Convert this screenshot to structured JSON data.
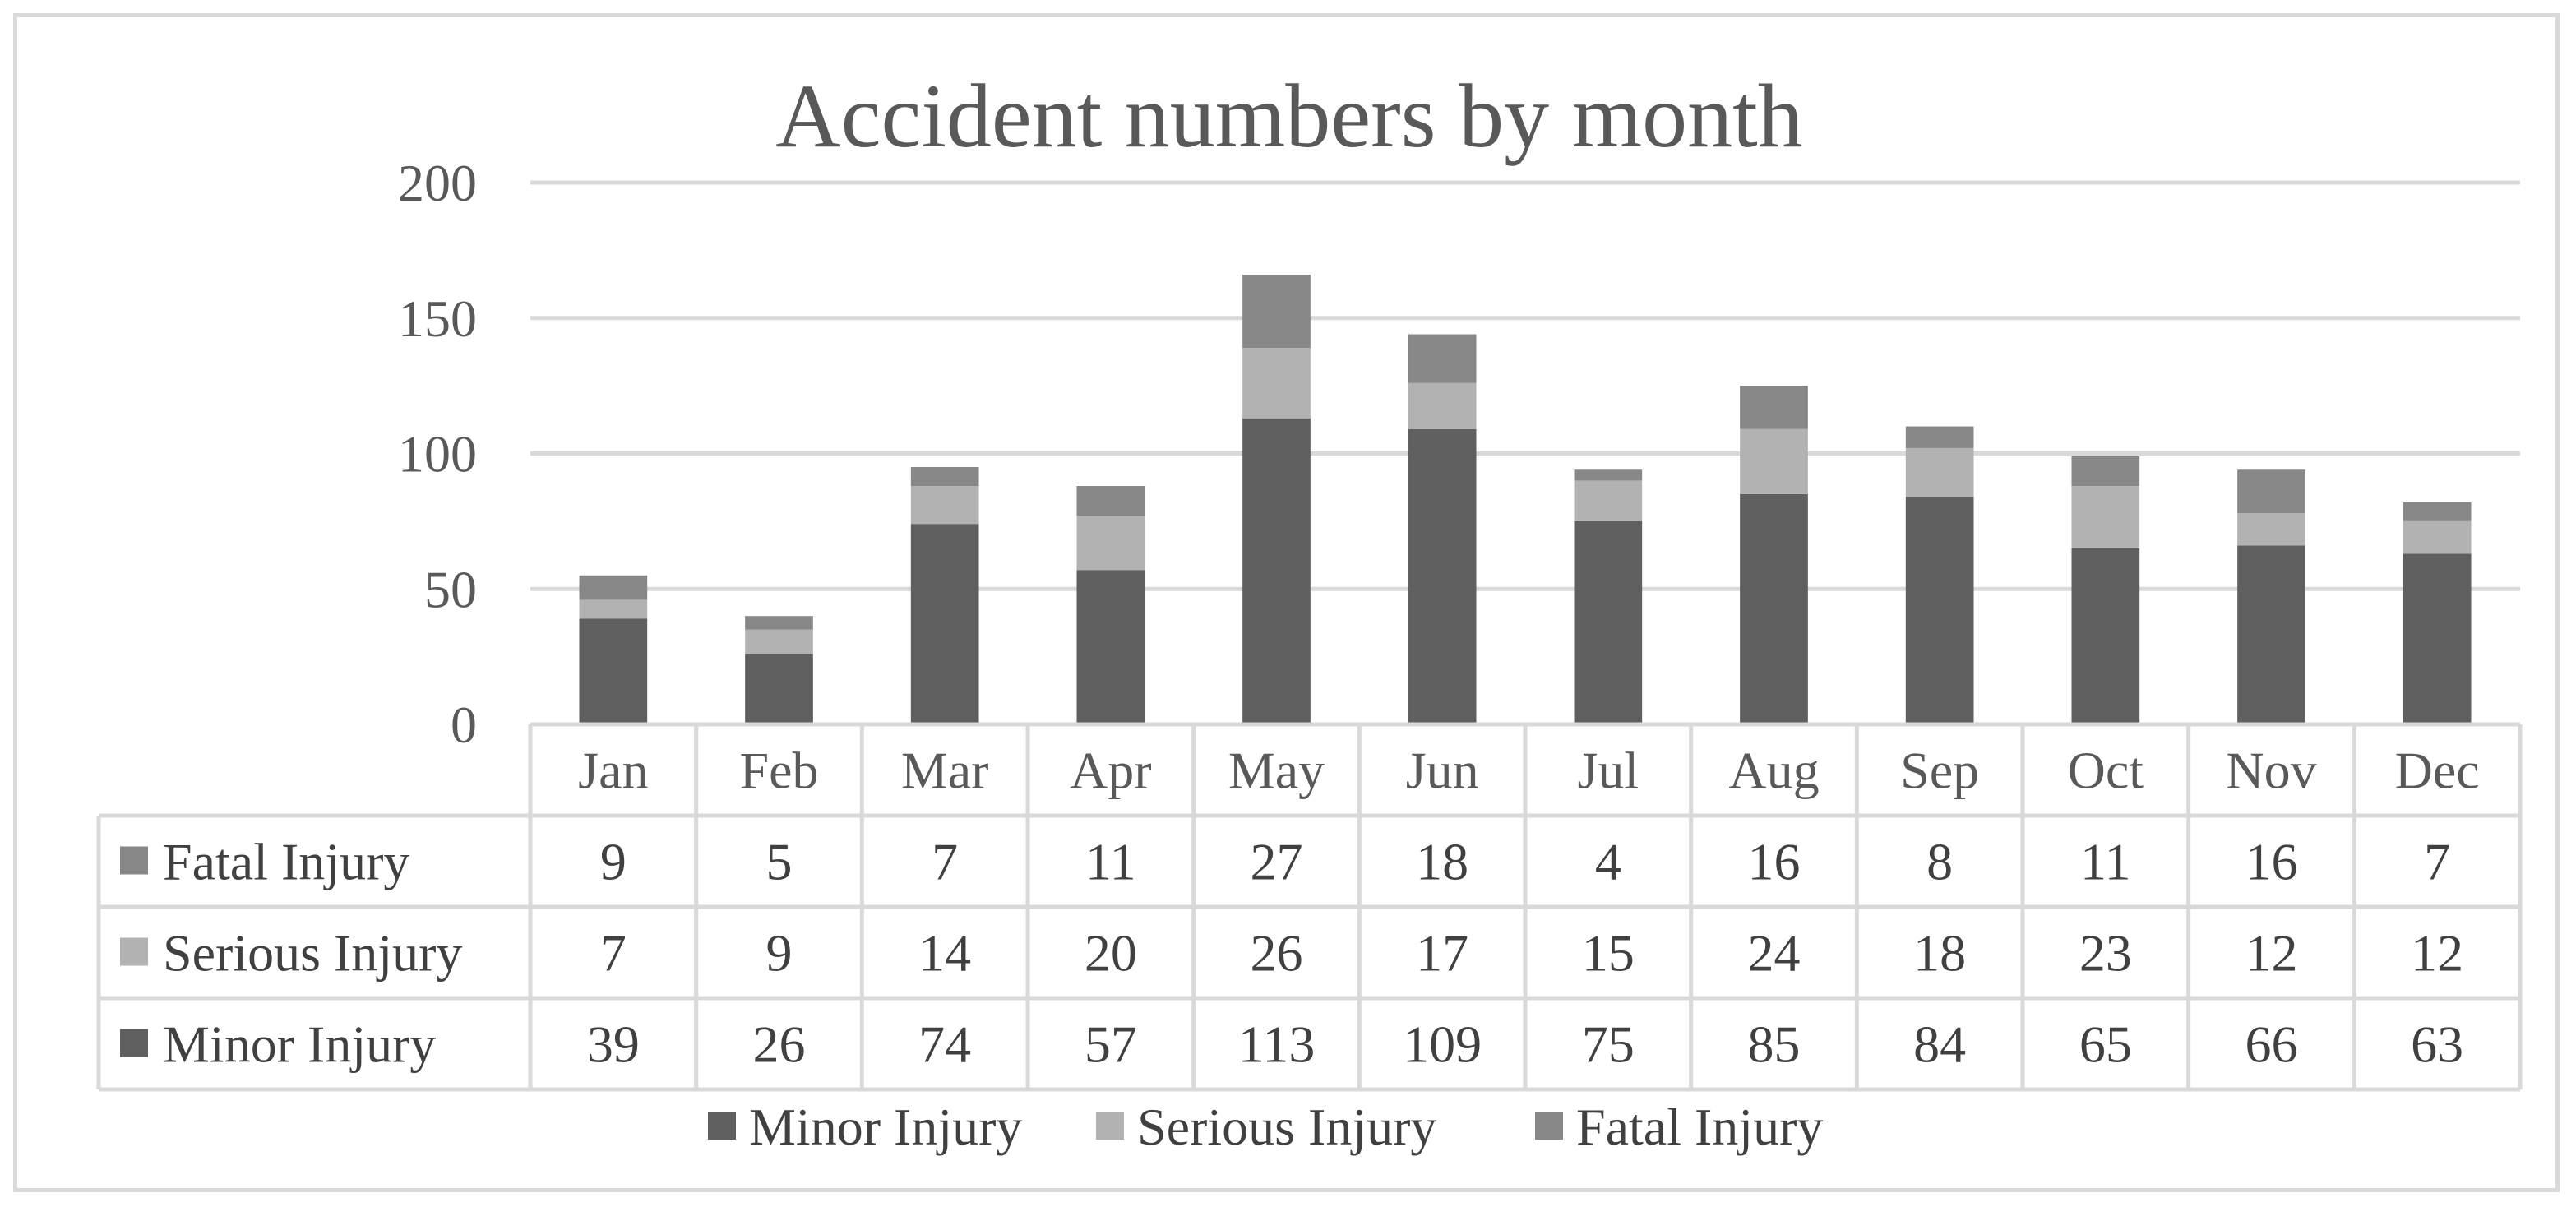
{
  "chart_data": {
    "type": "bar",
    "stacked": true,
    "title": "Accident numbers by month",
    "categories": [
      "Jan",
      "Feb",
      "Mar",
      "Apr",
      "May",
      "Jun",
      "Jul",
      "Aug",
      "Sep",
      "Oct",
      "Nov",
      "Dec"
    ],
    "series": [
      {
        "name": "Minor Injury",
        "color": "#5f5f5f",
        "values": [
          39,
          26,
          74,
          57,
          113,
          109,
          75,
          85,
          84,
          65,
          66,
          63
        ]
      },
      {
        "name": "Serious Injury",
        "color": "#b2b2b2",
        "values": [
          7,
          9,
          14,
          20,
          26,
          17,
          15,
          24,
          18,
          23,
          12,
          12
        ]
      },
      {
        "name": "Fatal Injury",
        "color": "#878787",
        "values": [
          9,
          5,
          7,
          11,
          27,
          18,
          4,
          16,
          8,
          11,
          16,
          7
        ]
      }
    ],
    "ylim": [
      0,
      200
    ],
    "yticks": [
      0,
      50,
      100,
      150,
      200
    ],
    "grid": true,
    "data_table": true,
    "table_row_order": [
      "Fatal Injury",
      "Serious Injury",
      "Minor Injury"
    ],
    "legend_position": "bottom"
  }
}
